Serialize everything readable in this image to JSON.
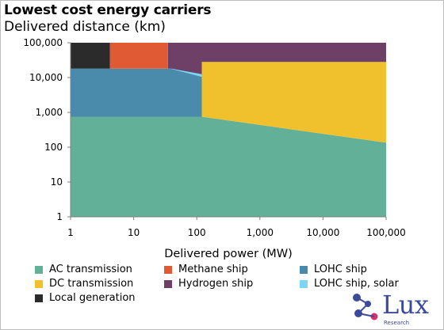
{
  "chart_data": {
    "type": "area",
    "title": "Lowest cost energy carriers",
    "ylabel": "Delivered distance (km)",
    "xlabel": "Delivered power (MW)",
    "x_scale": "log",
    "y_scale": "log",
    "xlim": [
      1,
      100000
    ],
    "ylim": [
      1,
      100000
    ],
    "x_ticks": [
      "1",
      "10",
      "100",
      "1,000",
      "10,000",
      "100,000"
    ],
    "y_ticks": [
      "1",
      "10",
      "100",
      "1,000",
      "10,000",
      "100,000"
    ],
    "regions": [
      {
        "name": "AC transmission",
        "color": "#63b098",
        "polygon": [
          [
            1,
            1
          ],
          [
            100000,
            1
          ],
          [
            100000,
            135
          ],
          [
            120,
            750
          ],
          [
            1,
            750
          ]
        ]
      },
      {
        "name": "DC transmission",
        "color": "#f0c02d",
        "polygon": [
          [
            120,
            750
          ],
          [
            100000,
            135
          ],
          [
            100000,
            28000
          ],
          [
            120,
            28000
          ]
        ]
      },
      {
        "name": "LOHC ship",
        "color": "#4a8bac",
        "polygon": [
          [
            1,
            750
          ],
          [
            120,
            750
          ],
          [
            120,
            12500
          ],
          [
            40,
            18000
          ],
          [
            1,
            18000
          ]
        ]
      },
      {
        "name": "LOHC ship, solar",
        "color": "#7dd6f5",
        "polygon": [
          [
            40,
            18000
          ],
          [
            120,
            12500
          ],
          [
            120,
            10500
          ],
          [
            40,
            17500
          ]
        ]
      },
      {
        "name": "Hydrogen ship",
        "color": "#6e3f67",
        "polygon": [
          [
            35,
            100000
          ],
          [
            100000,
            100000
          ],
          [
            100000,
            28000
          ],
          [
            120,
            28000
          ],
          [
            120,
            12500
          ],
          [
            40,
            18000
          ],
          [
            35,
            18000
          ]
        ]
      },
      {
        "name": "Methane ship",
        "color": "#e05a34",
        "polygon": [
          [
            4.2,
            18000
          ],
          [
            35,
            18000
          ],
          [
            35,
            100000
          ],
          [
            4.2,
            100000
          ]
        ]
      },
      {
        "name": "Local generation",
        "color": "#2b2b2b",
        "polygon": [
          [
            1,
            18000
          ],
          [
            4.2,
            18000
          ],
          [
            4.2,
            100000
          ],
          [
            1,
            100000
          ]
        ]
      }
    ],
    "legend": [
      {
        "label": "AC transmission",
        "color": "#63b098"
      },
      {
        "label": "Methane ship",
        "color": "#e05a34"
      },
      {
        "label": "LOHC ship",
        "color": "#4a8bac"
      },
      {
        "label": "DC transmission",
        "color": "#f0c02d"
      },
      {
        "label": "Hydrogen ship",
        "color": "#6e3f67"
      },
      {
        "label": "LOHC ship, solar",
        "color": "#7dd6f5"
      },
      {
        "label": "Local generation",
        "color": "#2b2b2b"
      }
    ],
    "legend_placement": "bottom"
  },
  "logo": {
    "word": "Lux",
    "sub": "Research",
    "color": "#3b4a9b",
    "accent": "#d6336c"
  }
}
